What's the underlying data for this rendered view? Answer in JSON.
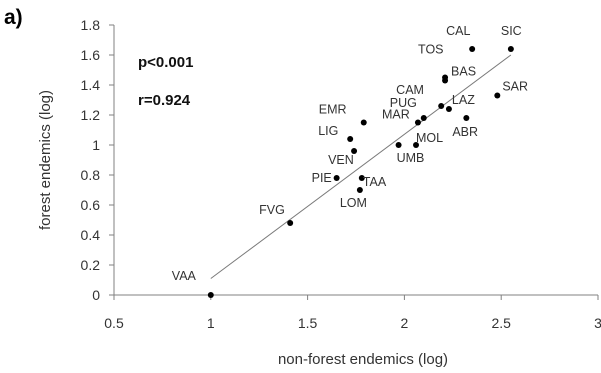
{
  "panel_label": "a)",
  "stats": {
    "p": "p<0.001",
    "r": "r=0.924"
  },
  "chart_data": {
    "type": "scatter",
    "xlabel": "non-forest endemics (log)",
    "ylabel": "forest endemics (log)",
    "xlim": [
      0.5,
      3
    ],
    "ylim": [
      0,
      1.8
    ],
    "xticks": [
      "0.5",
      "1",
      "1.5",
      "2",
      "2.5",
      "3"
    ],
    "yticks": [
      "0",
      "0.2",
      "0.4",
      "0.6",
      "0.8",
      "1",
      "1.2",
      "1.4",
      "1.6",
      "1.8"
    ],
    "grid": false,
    "trendline": {
      "x": [
        1.0,
        2.55
      ],
      "y": [
        0.11,
        1.6
      ]
    },
    "points": [
      {
        "label": "VAA",
        "x": 1.0,
        "y": 0.0
      },
      {
        "label": "FVG",
        "x": 1.41,
        "y": 0.48
      },
      {
        "label": "PIE",
        "x": 1.65,
        "y": 0.78
      },
      {
        "label": "LOM",
        "x": 1.77,
        "y": 0.7
      },
      {
        "label": "TAA",
        "x": 1.78,
        "y": 0.78
      },
      {
        "label": "VEN",
        "x": 1.74,
        "y": 0.96
      },
      {
        "label": "LIG",
        "x": 1.72,
        "y": 1.04
      },
      {
        "label": "EMR",
        "x": 1.79,
        "y": 1.15
      },
      {
        "label": "UMB",
        "x": 1.97,
        "y": 1.0
      },
      {
        "label": "MOL",
        "x": 2.06,
        "y": 1.0
      },
      {
        "label": "MAR",
        "x": 2.07,
        "y": 1.15
      },
      {
        "label": "PUG",
        "x": 2.1,
        "y": 1.18
      },
      {
        "label": "CAM",
        "x": 2.19,
        "y": 1.26
      },
      {
        "label": "LAZ",
        "x": 2.23,
        "y": 1.24
      },
      {
        "label": "ABR",
        "x": 2.32,
        "y": 1.18
      },
      {
        "label": "BAS",
        "x": 2.21,
        "y": 1.43
      },
      {
        "label": "TOS",
        "x": 2.21,
        "y": 1.45
      },
      {
        "label": "SAR",
        "x": 2.48,
        "y": 1.33
      },
      {
        "label": "CAL",
        "x": 2.35,
        "y": 1.64
      },
      {
        "label": "SIC",
        "x": 2.55,
        "y": 1.64
      }
    ]
  }
}
